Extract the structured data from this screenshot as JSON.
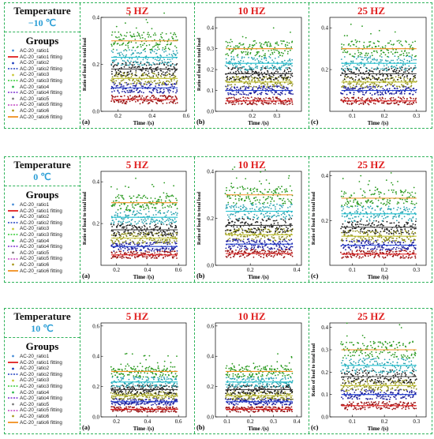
{
  "colors": {
    "border": "#2fb35a",
    "frequency": "#e02020",
    "temperature_value": "#2a9ed6"
  },
  "groups_title": "Groups",
  "temperature_title": "Temperature",
  "legend_entries": [
    {
      "label": "AC-20_ratio1",
      "color": "#4a8fd8",
      "kind": "points"
    },
    {
      "label": "AC-20_ratio1 fitting",
      "color": "#e02020",
      "kind": "line"
    },
    {
      "label": "AC-20_ratio2",
      "color": "#1f3fbf",
      "kind": "points"
    },
    {
      "label": "AC-20_ratio2 fitting",
      "color": "#1f3fbf",
      "kind": "dashline"
    },
    {
      "label": "AC-20_ratio3",
      "color": "#c9c93c",
      "kind": "points"
    },
    {
      "label": "AC-20_ratio3 fitting",
      "color": "#33cc33",
      "kind": "dashline"
    },
    {
      "label": "AC-20_ratio4",
      "color": "#2db84d",
      "kind": "points"
    },
    {
      "label": "AC-20_ratio4 fitting",
      "color": "#7a2fd0",
      "kind": "dashline"
    },
    {
      "label": "AC-20_ratio5",
      "color": "#7a7a7a",
      "kind": "points"
    },
    {
      "label": "AC-20_ratio5 fitting",
      "color": "#c040c0",
      "kind": "dashline"
    },
    {
      "label": "AC-20_ratio6",
      "color": "#aa9a20",
      "kind": "points"
    },
    {
      "label": "AC-20_ratio6 fitting",
      "color": "#f09020",
      "kind": "line"
    }
  ],
  "series_colors": [
    "#9a1010",
    "#1a1a9a",
    "#8c8c1a",
    "#1a1a1a",
    "#2aa3b0",
    "#2a9a20"
  ],
  "fit_colors": [
    "#e02020",
    "#2040d0",
    "#c0c030",
    "#444444",
    "#20c0d0",
    "#f09020"
  ],
  "rows": [
    {
      "temperature": "−10 ℃",
      "panels": [
        {
          "label": "(a)",
          "frequency": "5 HZ",
          "show_ylabel": true,
          "xlim": [
            0.1,
            0.6
          ],
          "xticks": [
            "0.2",
            "0.4",
            "0.6"
          ],
          "ylim": [
            0.0,
            0.4
          ],
          "yticks": [
            "0.0",
            "0.2",
            "0.4"
          ],
          "levels": [
            0.05,
            0.1,
            0.14,
            0.18,
            0.23,
            0.3
          ]
        },
        {
          "label": "(b)",
          "frequency": "10 HZ",
          "show_ylabel": true,
          "xlim": [
            0.05,
            0.4
          ],
          "xticks": [
            "0.2",
            "0.3"
          ],
          "ylim": [
            0.0,
            0.45
          ],
          "yticks": [
            "0.0",
            "0.1",
            "0.2",
            "0.3",
            "0.4"
          ],
          "levels": [
            0.05,
            0.1,
            0.14,
            0.18,
            0.23,
            0.3
          ]
        },
        {
          "label": "(c)",
          "frequency": "25 HZ",
          "show_ylabel": false,
          "xlim": [
            0.03,
            0.33
          ],
          "xticks": [
            "0.1",
            "0.2",
            "0.3"
          ],
          "ylim": [
            0.0,
            0.45
          ],
          "yticks": [
            "0.2",
            "0.4"
          ],
          "levels": [
            0.05,
            0.1,
            0.14,
            0.18,
            0.23,
            0.3
          ]
        }
      ]
    },
    {
      "temperature": "0 ℃",
      "panels": [
        {
          "label": "(a)",
          "frequency": "5 HZ",
          "show_ylabel": true,
          "xlim": [
            0.1,
            0.65
          ],
          "xticks": [
            "0.2",
            "0.4",
            "0.6"
          ],
          "ylim": [
            0.0,
            0.45
          ],
          "yticks": [
            "0.2",
            "0.4"
          ],
          "levels": [
            0.05,
            0.09,
            0.13,
            0.17,
            0.23,
            0.3
          ]
        },
        {
          "label": "(b)",
          "frequency": "10 HZ",
          "show_ylabel": true,
          "xlim": [
            0.05,
            0.42
          ],
          "xticks": [
            "0.2",
            "0.4"
          ],
          "ylim": [
            0.0,
            0.4
          ],
          "yticks": [
            "0.0",
            "0.2",
            "0.4"
          ],
          "levels": [
            0.05,
            0.09,
            0.13,
            0.17,
            0.23,
            0.3
          ]
        },
        {
          "label": "(c)",
          "frequency": "25 HZ",
          "show_ylabel": true,
          "xlim": [
            0.03,
            0.33
          ],
          "xticks": [
            "0.1",
            "0.2",
            "0.3"
          ],
          "ylim": [
            0.0,
            0.42
          ],
          "yticks": [
            "0.2",
            "0.4"
          ],
          "levels": [
            0.05,
            0.09,
            0.13,
            0.17,
            0.23,
            0.3
          ]
        }
      ]
    },
    {
      "temperature": "10 ℃",
      "panels": [
        {
          "label": "(a)",
          "frequency": "5 HZ",
          "show_ylabel": false,
          "xlim": [
            0.1,
            0.65
          ],
          "xticks": [
            "0.2",
            "0.4",
            "0.6"
          ],
          "ylim": [
            0.0,
            0.62
          ],
          "yticks": [
            "0.0",
            "0.2",
            "0.4",
            "0.6"
          ],
          "levels": [
            0.05,
            0.1,
            0.14,
            0.18,
            0.23,
            0.3
          ]
        },
        {
          "label": "(b)",
          "frequency": "10 HZ",
          "show_ylabel": false,
          "xlim": [
            0.05,
            0.42
          ],
          "xticks": [
            "0.1",
            "0.2",
            "0.3",
            "0.4"
          ],
          "ylim": [
            0.0,
            0.62
          ],
          "yticks": [
            "0.0",
            "0.2",
            "0.4",
            "0.6"
          ],
          "levels": [
            0.05,
            0.1,
            0.14,
            0.18,
            0.23,
            0.3
          ]
        },
        {
          "label": "(c)",
          "frequency": "25 HZ",
          "show_ylabel": true,
          "xlim": [
            0.03,
            0.33
          ],
          "xticks": [
            "0.1",
            "0.2",
            "0.3"
          ],
          "ylim": [
            0.0,
            0.42
          ],
          "yticks": [
            "0.0",
            "0.1",
            "0.2",
            "0.3",
            "0.4"
          ],
          "levels": [
            0.05,
            0.1,
            0.14,
            0.18,
            0.23,
            0.3
          ]
        }
      ]
    }
  ],
  "axis_labels": {
    "x": "Time /(s)",
    "y": "Ratio of load to total load"
  },
  "chart_data": [
    {
      "type": "scatter",
      "xlabel": "Time /(s)",
      "ylabel": "Ratio of load to total load",
      "title": "5 HZ",
      "ylim": [
        0.0,
        0.4
      ],
      "series": [
        {
          "name": "AC-20_ratio1",
          "mean": 0.05
        },
        {
          "name": "AC-20_ratio2",
          "mean": 0.1
        },
        {
          "name": "AC-20_ratio3",
          "mean": 0.14
        },
        {
          "name": "AC-20_ratio5",
          "mean": 0.18
        },
        {
          "name": "AC-20_ratio4",
          "mean": 0.23
        },
        {
          "name": "AC-20_ratio6",
          "mean": 0.3
        }
      ]
    },
    {
      "type": "scatter",
      "xlabel": "Time /(s)",
      "ylabel": "Ratio of load to total load",
      "title": "10 HZ",
      "ylim": [
        0.0,
        0.45
      ]
    },
    {
      "type": "scatter",
      "xlabel": "Time /(s)",
      "ylabel": "Ratio of load to total load",
      "title": "25 HZ",
      "ylim": [
        0.0,
        0.45
      ]
    }
  ]
}
